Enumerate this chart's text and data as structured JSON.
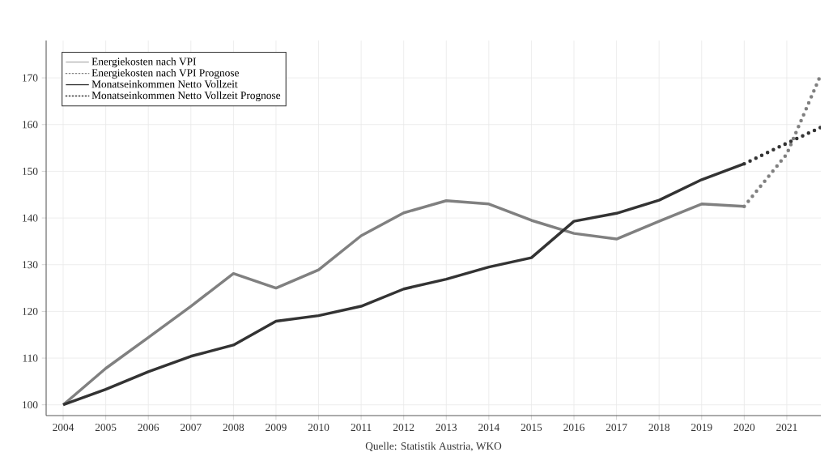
{
  "chart_data": {
    "type": "line",
    "xlim": [
      2003.6,
      2021.8
    ],
    "ylim": [
      97.7,
      178
    ],
    "xticks": [
      2004,
      2005,
      2006,
      2007,
      2008,
      2009,
      2010,
      2011,
      2012,
      2013,
      2014,
      2015,
      2016,
      2017,
      2018,
      2019,
      2020,
      2021
    ],
    "yticks": [
      100,
      110,
      120,
      130,
      140,
      150,
      160,
      170
    ],
    "grid": true,
    "legend": "top left",
    "series": [
      {
        "name": "Energiekosten nach VPI",
        "color": "#808080",
        "line_style": "solid",
        "x": [
          2004,
          2005,
          2006,
          2007,
          2008,
          2009,
          2010,
          2011,
          2012,
          2013,
          2014,
          2015,
          2016,
          2017,
          2018,
          2019,
          2020
        ],
        "values": [
          100,
          107.8,
          114.4,
          121.1,
          128.1,
          125.0,
          128.9,
          136.2,
          141.1,
          143.7,
          143.0,
          139.5,
          136.7,
          135.5,
          139.3,
          143.0,
          142.5
        ]
      },
      {
        "name": "Energiekosten nach VPI Prognose",
        "color": "#808080",
        "line_style": "dotted",
        "x": [
          2020,
          2021,
          2021.8
        ],
        "values": [
          142.5,
          153.7,
          170.7
        ]
      },
      {
        "name": "Monatseinkommen Netto Vollzeit",
        "color": "#333333",
        "line_style": "solid",
        "x": [
          2004,
          2005,
          2006,
          2007,
          2008,
          2009,
          2010,
          2011,
          2012,
          2013,
          2014,
          2015,
          2016,
          2017,
          2018,
          2019,
          2020
        ],
        "values": [
          100,
          103.3,
          107.1,
          110.4,
          112.8,
          117.9,
          119.1,
          121.1,
          124.8,
          126.9,
          129.5,
          131.5,
          139.3,
          141.0,
          143.8,
          148.2,
          151.6
        ]
      },
      {
        "name": "Monatseinkommen Netto Vollzeit Prognose",
        "color": "#333333",
        "line_style": "dotted",
        "x": [
          2020,
          2021,
          2021.8
        ],
        "values": [
          151.6,
          156.0,
          159.4
        ]
      }
    ],
    "annotations": [
      "Quelle: Statistik Austria, WKO"
    ]
  }
}
